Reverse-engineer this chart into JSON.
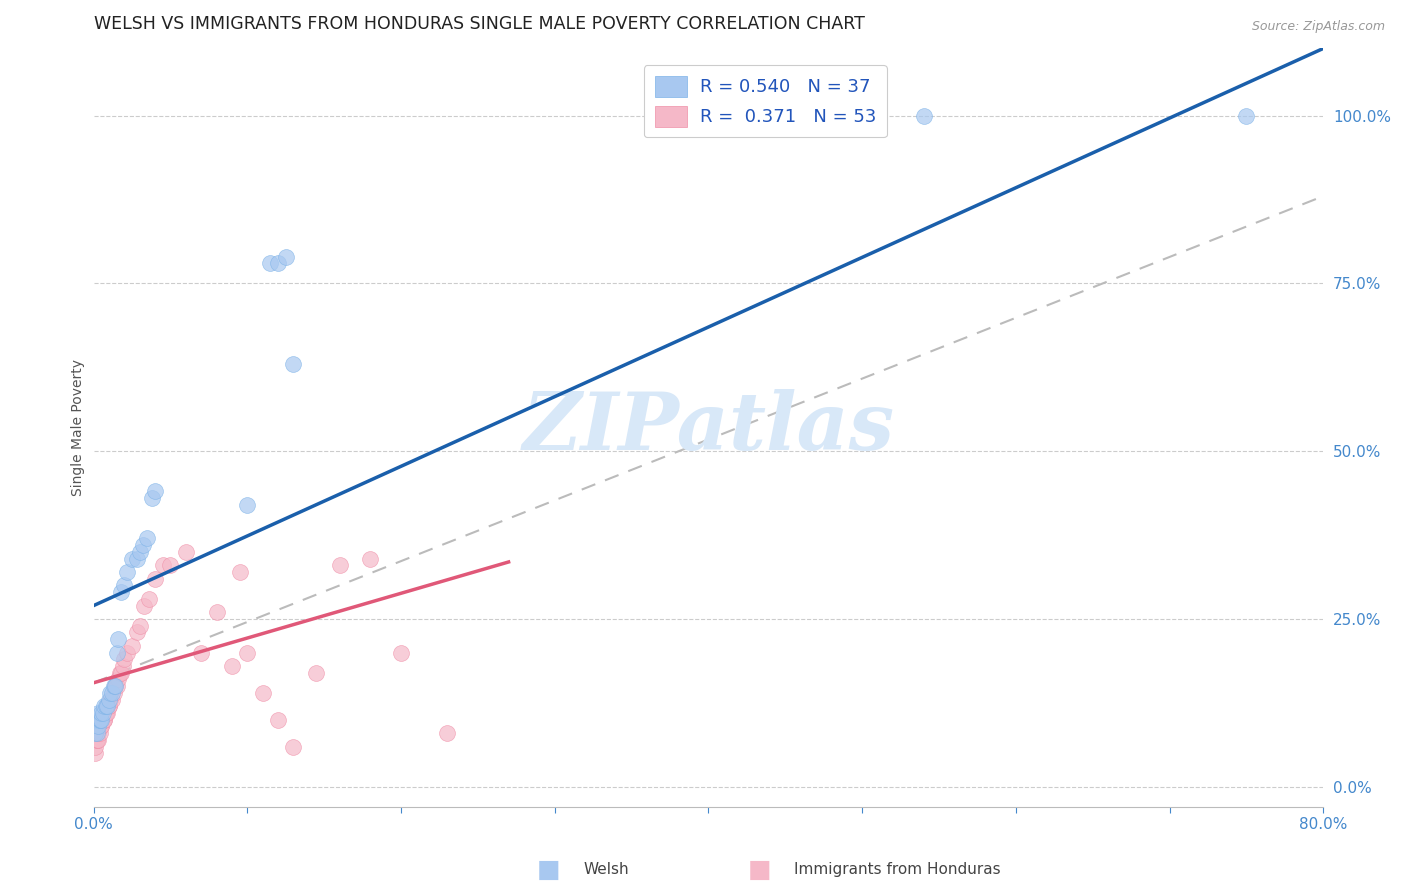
{
  "title": "WELSH VS IMMIGRANTS FROM HONDURAS SINGLE MALE POVERTY CORRELATION CHART",
  "source": "Source: ZipAtlas.com",
  "ylabel": "Single Male Poverty",
  "xlim": [
    0.0,
    0.8
  ],
  "ylim": [
    -0.03,
    1.1
  ],
  "xticks": [
    0.0,
    0.1,
    0.2,
    0.3,
    0.4,
    0.5,
    0.6,
    0.7,
    0.8
  ],
  "xtick_labels": [
    "0.0%",
    "",
    "",
    "",
    "",
    "",
    "",
    "",
    "80.0%"
  ],
  "yticks": [
    0.0,
    0.25,
    0.5,
    0.75,
    1.0
  ],
  "ytick_labels": [
    "0.0%",
    "25.0%",
    "50.0%",
    "75.0%",
    "100.0%"
  ],
  "welsh_color": "#A8C8F0",
  "welsh_edge_color": "#7EB3E8",
  "honduras_color": "#F5B8C8",
  "honduras_edge_color": "#F090A8",
  "welsh_line_color": "#1A5FAB",
  "honduras_line_color": "#E05878",
  "gray_dash_color": "#BBBBBB",
  "legend_label_welsh": "R = 0.540   N = 37",
  "legend_label_honduras": "R =  0.371   N = 53",
  "legend_text_color": "#2255BB",
  "tick_color": "#4488CC",
  "title_color": "#222222",
  "grid_color": "#CCCCCC",
  "background_color": "#FFFFFF",
  "watermark_text": "ZIPatlas",
  "watermark_color": "#D8E8F8",
  "source_color": "#999999",
  "title_fontsize": 12.5,
  "tick_fontsize": 11,
  "legend_fontsize": 13,
  "ylabel_fontsize": 10,
  "source_fontsize": 9,
  "scatter_size": 130,
  "scatter_alpha": 0.7,
  "welsh_line_x0": 0.0,
  "welsh_line_y0": 0.27,
  "welsh_line_x1": 0.8,
  "welsh_line_y1": 1.1,
  "hon_line_x0": 0.0,
  "hon_line_y0": 0.155,
  "hon_line_x1": 0.27,
  "hon_line_y1": 0.335,
  "gray_line_x0": 0.0,
  "gray_line_y0": 0.155,
  "gray_line_x1": 0.8,
  "gray_line_y1": 0.88,
  "welsh_x": [
    0.001,
    0.002,
    0.002,
    0.003,
    0.003,
    0.004,
    0.004,
    0.005,
    0.005,
    0.006,
    0.007,
    0.008,
    0.009,
    0.01,
    0.011,
    0.012,
    0.013,
    0.014,
    0.015,
    0.016,
    0.018,
    0.02,
    0.022,
    0.025,
    0.028,
    0.03,
    0.032,
    0.035,
    0.038,
    0.04,
    0.1,
    0.115,
    0.12,
    0.125,
    0.13,
    0.54,
    0.75
  ],
  "welsh_y": [
    0.08,
    0.08,
    0.1,
    0.09,
    0.11,
    0.1,
    0.1,
    0.1,
    0.11,
    0.11,
    0.12,
    0.12,
    0.12,
    0.13,
    0.14,
    0.14,
    0.15,
    0.15,
    0.2,
    0.22,
    0.29,
    0.3,
    0.32,
    0.34,
    0.34,
    0.35,
    0.36,
    0.37,
    0.43,
    0.44,
    0.42,
    0.78,
    0.78,
    0.79,
    0.63,
    1.0,
    1.0
  ],
  "honduras_x": [
    0.001,
    0.001,
    0.002,
    0.002,
    0.003,
    0.003,
    0.004,
    0.004,
    0.005,
    0.005,
    0.006,
    0.006,
    0.007,
    0.007,
    0.008,
    0.008,
    0.009,
    0.009,
    0.01,
    0.01,
    0.011,
    0.012,
    0.013,
    0.014,
    0.015,
    0.016,
    0.017,
    0.018,
    0.019,
    0.02,
    0.022,
    0.025,
    0.028,
    0.03,
    0.033,
    0.036,
    0.04,
    0.045,
    0.05,
    0.06,
    0.07,
    0.08,
    0.09,
    0.095,
    0.1,
    0.11,
    0.12,
    0.13,
    0.145,
    0.16,
    0.18,
    0.2,
    0.23
  ],
  "honduras_y": [
    0.05,
    0.06,
    0.07,
    0.07,
    0.07,
    0.08,
    0.08,
    0.09,
    0.09,
    0.09,
    0.1,
    0.1,
    0.1,
    0.1,
    0.11,
    0.11,
    0.11,
    0.12,
    0.12,
    0.12,
    0.13,
    0.13,
    0.14,
    0.15,
    0.15,
    0.16,
    0.17,
    0.17,
    0.18,
    0.19,
    0.2,
    0.21,
    0.23,
    0.24,
    0.27,
    0.28,
    0.31,
    0.33,
    0.33,
    0.35,
    0.2,
    0.26,
    0.18,
    0.32,
    0.2,
    0.14,
    0.1,
    0.06,
    0.17,
    0.33,
    0.34,
    0.2,
    0.08
  ]
}
